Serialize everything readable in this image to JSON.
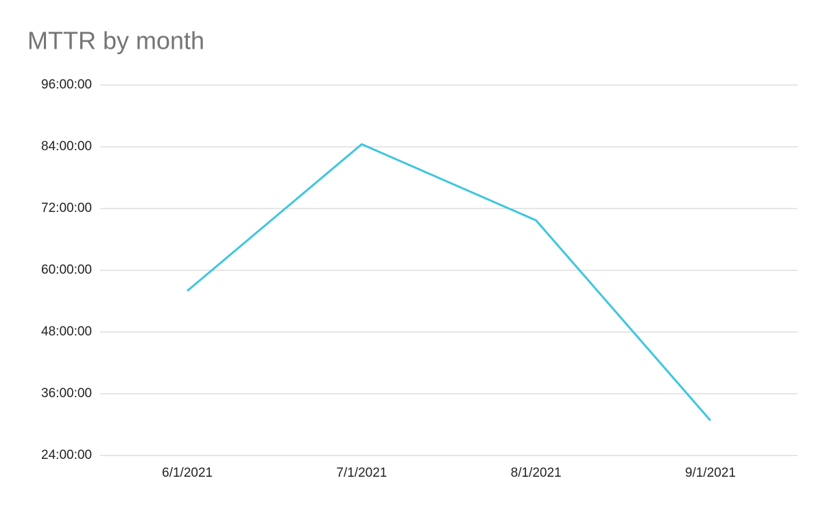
{
  "chart_data": {
    "type": "line",
    "title": "MTTR by month",
    "categories": [
      "6/1/2021",
      "7/1/2021",
      "8/1/2021",
      "9/1/2021"
    ],
    "series": [
      {
        "name": "MTTR",
        "color": "#3ec6e0",
        "values": [
          56,
          84.5,
          69.7,
          30.8
        ]
      }
    ],
    "ylim": [
      24,
      96
    ],
    "yticks": [
      {
        "value": 24,
        "label": "24:00:00"
      },
      {
        "value": 36,
        "label": "36:00:00"
      },
      {
        "value": 48,
        "label": "48:00:00"
      },
      {
        "value": 60,
        "label": "60:00:00"
      },
      {
        "value": 72,
        "label": "72:00:00"
      },
      {
        "value": 84,
        "label": "84:00:00"
      },
      {
        "value": 96,
        "label": "96:00:00"
      }
    ],
    "grid": true
  }
}
